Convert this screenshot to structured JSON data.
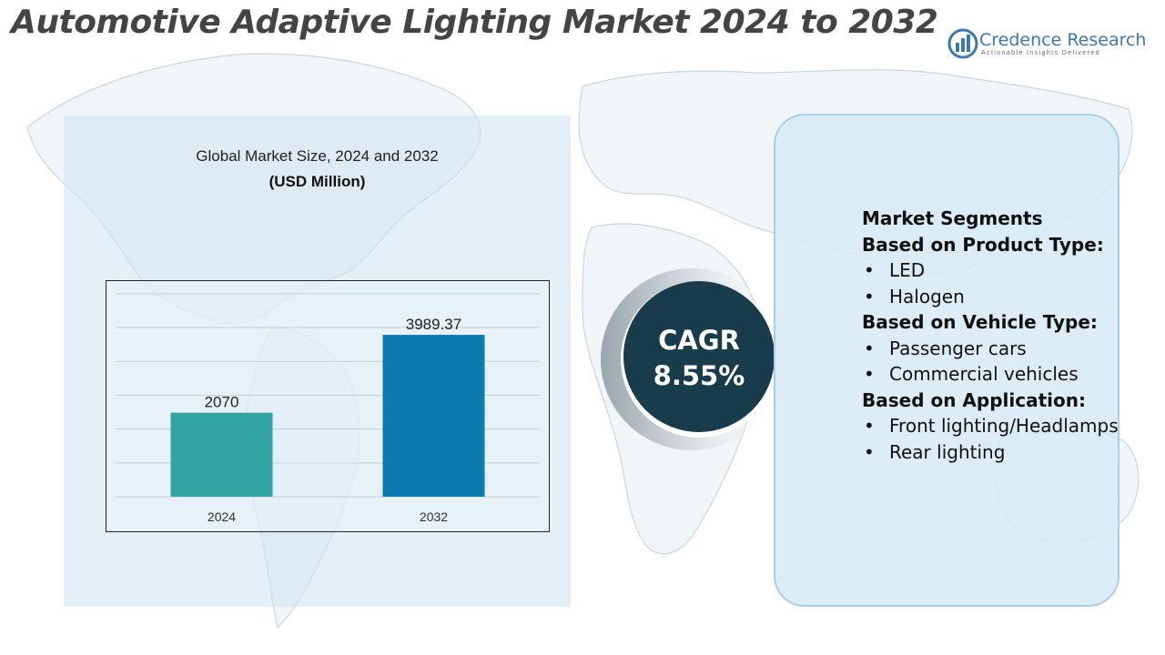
{
  "title": "Automotive Adaptive Lighting Market 2024 to 2032",
  "logo": {
    "name": "Credence Research",
    "tagline": "Actionable Insights Delivered",
    "icon": "bar-chart-globe-icon",
    "color": "#3a78b5"
  },
  "chart_heading": {
    "title": "Global Market Size, 2024 and 2032",
    "unit": "(USD Million)"
  },
  "chart_data": {
    "type": "bar",
    "categories": [
      "2024",
      "2032"
    ],
    "values": [
      2070,
      3989.37
    ],
    "value_labels": [
      "2070",
      "3989.37"
    ],
    "colors": [
      "#33a3a3",
      "#0e7bb0"
    ],
    "ylim": [
      0,
      5000
    ],
    "grid": true,
    "title": "Global Market Size, 2024 and 2032",
    "ylabel": "(USD Million)"
  },
  "cagr": {
    "label": "CAGR",
    "value": "8.55%",
    "color": "#183c4b"
  },
  "segments": {
    "heading": "Market Segments",
    "groups": [
      {
        "heading": "Based on Product Type:",
        "items": [
          "LED",
          "Halogen"
        ]
      },
      {
        "heading": "Based on Vehicle Type:",
        "items": [
          "Passenger cars",
          "Commercial vehicles"
        ]
      },
      {
        "heading": "Based on Application:",
        "items": [
          "Front lighting/Headlamps",
          "Rear lighting"
        ]
      }
    ]
  }
}
